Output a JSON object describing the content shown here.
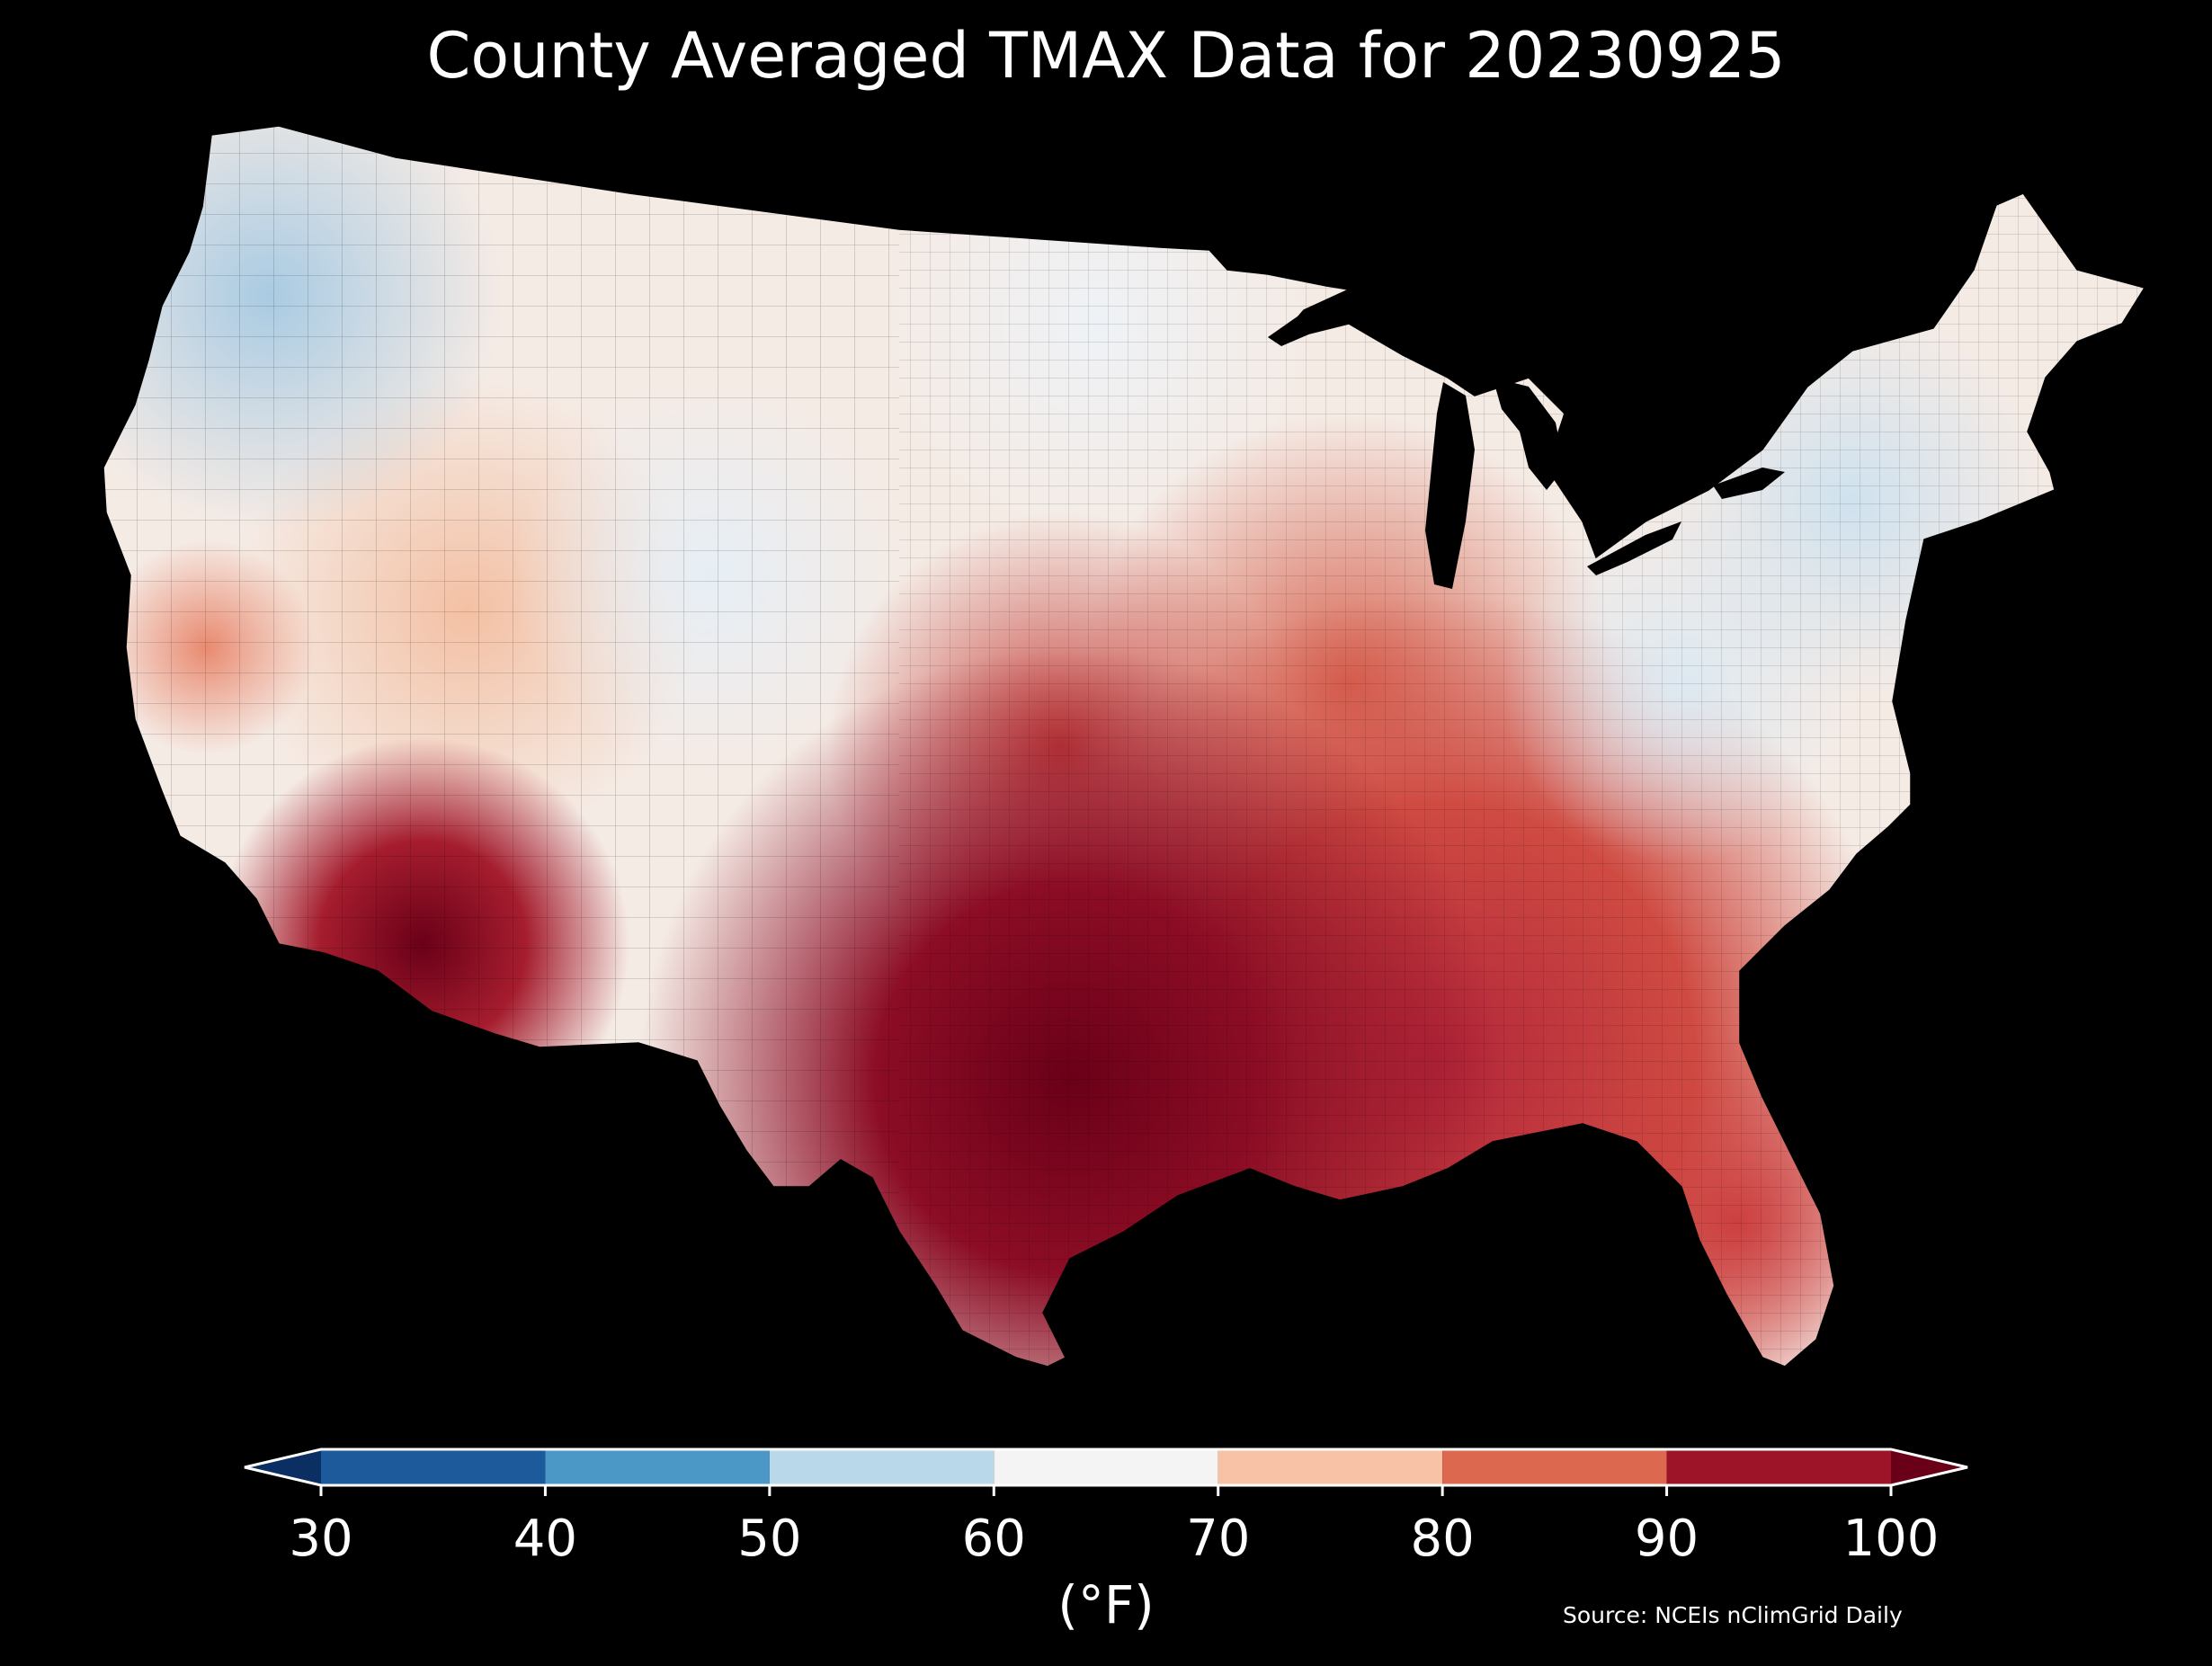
{
  "title": "County Averaged TMAX Data for 20230925",
  "colorbar": {
    "unit_label": "(°F)",
    "ticks": [
      "30",
      "40",
      "50",
      "60",
      "70",
      "80",
      "90",
      "100"
    ],
    "bins": [
      {
        "from": 30,
        "to": 40,
        "color": "#1c5a9b"
      },
      {
        "from": 40,
        "to": 50,
        "color": "#4b98c7"
      },
      {
        "from": 50,
        "to": 60,
        "color": "#b9d9ea"
      },
      {
        "from": 60,
        "to": 70,
        "color": "#f4f4f4"
      },
      {
        "from": 70,
        "to": 80,
        "color": "#f8c2a6"
      },
      {
        "from": 80,
        "to": 90,
        "color": "#dc6850"
      },
      {
        "from": 90,
        "to": 100,
        "color": "#9d1429"
      }
    ],
    "under_color": "#0b2f62",
    "over_color": "#6a0018",
    "outline_color": "#ffffff"
  },
  "source": "Source: NCEIs nClimGrid Daily",
  "background_color": "#000000",
  "land_gradient": {
    "cool_color": "#c9dfee",
    "neutral_color": "#f6efe9",
    "warm_color": "#ec9a7c",
    "hot_color": "#b72a35",
    "hottest_color": "#73041f"
  }
}
